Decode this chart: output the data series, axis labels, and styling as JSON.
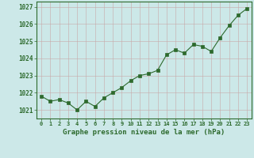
{
  "x": [
    0,
    1,
    2,
    3,
    4,
    5,
    6,
    7,
    8,
    9,
    10,
    11,
    12,
    13,
    14,
    15,
    16,
    17,
    18,
    19,
    20,
    21,
    22,
    23
  ],
  "y": [
    1021.8,
    1021.5,
    1021.6,
    1021.4,
    1021.0,
    1021.5,
    1021.2,
    1021.7,
    1022.0,
    1022.3,
    1022.7,
    1023.0,
    1023.1,
    1023.3,
    1024.2,
    1024.5,
    1024.3,
    1024.8,
    1024.7,
    1024.4,
    1025.2,
    1025.9,
    1026.5,
    1026.9
  ],
  "line_color": "#2d6a2d",
  "marker": "s",
  "marker_size": 2.5,
  "bg_color": "#cce8e8",
  "grid_color": "#b8d8d8",
  "xlabel": "Graphe pression niveau de la mer (hPa)",
  "xlabel_color": "#2d6a2d",
  "tick_color": "#2d6a2d",
  "spine_color": "#2d6a2d",
  "ylim": [
    1020.5,
    1027.3
  ],
  "yticks": [
    1021,
    1022,
    1023,
    1024,
    1025,
    1026,
    1027
  ],
  "xticks": [
    0,
    1,
    2,
    3,
    4,
    5,
    6,
    7,
    8,
    9,
    10,
    11,
    12,
    13,
    14,
    15,
    16,
    17,
    18,
    19,
    20,
    21,
    22,
    23
  ]
}
